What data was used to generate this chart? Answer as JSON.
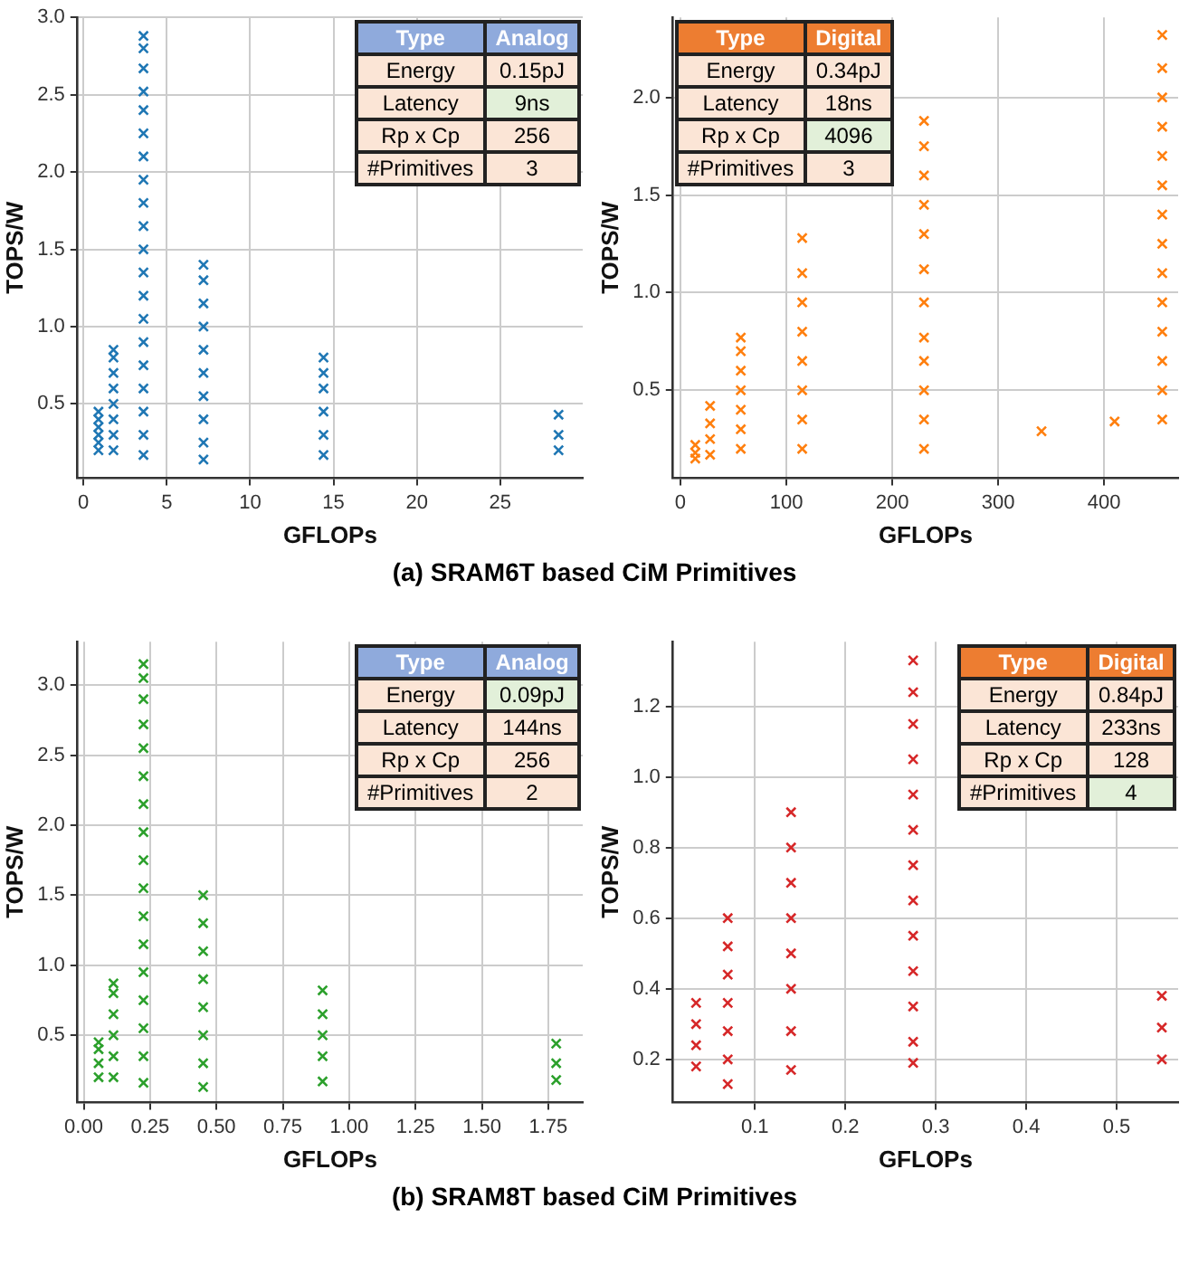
{
  "chart_data": [
    {
      "type": "scatter",
      "xlabel": "GFLOPs",
      "ylabel": "TOPS/W",
      "marker": "cross",
      "grid": true,
      "annotations": [
        "Type",
        "Analog",
        "Energy",
        "0.15pJ",
        "Latency",
        "9ns",
        "Rp x Cp",
        "256",
        "#Primitives",
        "3",
        "(a) SRAM6T based CiM Primitives"
      ],
      "xlim": [
        -0.35,
        29.95
      ],
      "ylim": [
        0.02,
        3.0
      ],
      "xticks": [
        0,
        5,
        10,
        15,
        20,
        25
      ],
      "yticks": [
        {
          "value": 0.5,
          "label": "0.5"
        },
        {
          "value": 1,
          "label": "1.0"
        },
        {
          "value": 1.5,
          "label": "1.5"
        },
        {
          "value": 2,
          "label": "2.0"
        },
        {
          "value": 2.5,
          "label": "2.5"
        },
        {
          "value": 3,
          "label": "3.0"
        }
      ],
      "series": [
        {
          "color": "#1f77b4",
          "x": [
            0.9,
            0.9,
            0.9,
            0.9,
            0.9,
            0.9,
            1.8,
            1.8,
            1.8,
            1.8,
            1.8,
            1.8,
            1.8,
            1.8,
            3.6,
            3.6,
            3.6,
            3.6,
            3.6,
            3.6,
            3.6,
            3.6,
            3.6,
            3.6,
            3.6,
            3.6,
            3.6,
            3.6,
            3.6,
            3.6,
            3.6,
            3.6,
            3.6,
            3.6,
            7.2,
            7.2,
            7.2,
            7.2,
            7.2,
            7.2,
            7.2,
            7.2,
            7.2,
            7.2,
            14.4,
            14.4,
            14.4,
            14.4,
            14.4,
            14.4,
            28.5,
            28.5,
            28.5
          ],
          "values": [
            0.2,
            0.25,
            0.3,
            0.35,
            0.4,
            0.45,
            0.2,
            0.3,
            0.4,
            0.5,
            0.6,
            0.7,
            0.8,
            0.85,
            0.17,
            0.3,
            0.45,
            0.6,
            0.75,
            0.9,
            1.05,
            1.2,
            1.35,
            1.5,
            1.65,
            1.8,
            1.95,
            2.1,
            2.25,
            2.4,
            2.52,
            2.67,
            2.8,
            2.88,
            0.14,
            0.25,
            0.4,
            0.55,
            0.7,
            0.85,
            1.0,
            1.15,
            1.3,
            1.4,
            0.17,
            0.3,
            0.45,
            0.6,
            0.7,
            0.8,
            0.2,
            0.3,
            0.43
          ]
        }
      ]
    },
    {
      "type": "scatter",
      "xlabel": "GFLOPs",
      "ylabel": "TOPS/W",
      "marker": "cross",
      "grid": true,
      "annotations": [
        "Type",
        "Digital",
        "Energy",
        "0.34pJ",
        "Latency",
        "18ns",
        "Rp x Cp",
        "4096",
        "#Primitives",
        "3"
      ],
      "xlim": [
        -7,
        470
      ],
      "ylim": [
        0.05,
        2.41
      ],
      "xticks": [
        0,
        100,
        200,
        300,
        400
      ],
      "yticks": [
        {
          "value": 0.5,
          "label": "0.5"
        },
        {
          "value": 1,
          "label": "1.0"
        },
        {
          "value": 1.5,
          "label": "1.5"
        },
        {
          "value": 2,
          "label": "2.0"
        }
      ],
      "series": [
        {
          "color": "#ff7f0e",
          "x": [
            14,
            14,
            14,
            28,
            28,
            28,
            28,
            57,
            57,
            57,
            57,
            57,
            57,
            57,
            115,
            115,
            115,
            115,
            115,
            115,
            115,
            115,
            230,
            230,
            230,
            230,
            230,
            230,
            230,
            230,
            230,
            230,
            230,
            230,
            341,
            410,
            455,
            455,
            455,
            455,
            455,
            455,
            455,
            455,
            455,
            455,
            455,
            455,
            455,
            455
          ],
          "values": [
            0.15,
            0.18,
            0.22,
            0.17,
            0.25,
            0.33,
            0.42,
            0.2,
            0.3,
            0.4,
            0.5,
            0.6,
            0.7,
            0.77,
            0.2,
            0.35,
            0.5,
            0.65,
            0.8,
            0.95,
            1.1,
            1.28,
            0.2,
            0.35,
            0.5,
            0.65,
            0.77,
            0.95,
            1.12,
            1.3,
            1.45,
            1.6,
            1.75,
            1.88,
            0.29,
            0.34,
            0.35,
            0.5,
            0.65,
            0.8,
            0.95,
            1.1,
            1.25,
            1.4,
            1.55,
            1.7,
            1.85,
            2.0,
            2.15,
            2.32
          ]
        }
      ]
    },
    {
      "type": "scatter",
      "xlabel": "GFLOPs",
      "ylabel": "TOPS/W",
      "marker": "cross",
      "grid": true,
      "annotations": [
        "Type",
        "Analog",
        "Energy",
        "0.09pJ",
        "Latency",
        "144ns",
        "Rp x Cp",
        "256",
        "#Primitives",
        "2",
        "(b) SRAM8T based CiM Primitives"
      ],
      "xlim": [
        -0.023,
        1.88
      ],
      "ylim": [
        0.02,
        3.31
      ],
      "xticks": [
        {
          "value": 0,
          "label": "0.00"
        },
        {
          "value": 0.25,
          "label": "0.25"
        },
        {
          "value": 0.5,
          "label": "0.50"
        },
        {
          "value": 0.75,
          "label": "0.75"
        },
        {
          "value": 1,
          "label": "1.00"
        },
        {
          "value": 1.25,
          "label": "1.25"
        },
        {
          "value": 1.5,
          "label": "1.50"
        },
        {
          "value": 1.75,
          "label": "1.75"
        }
      ],
      "yticks": [
        {
          "value": 0.5,
          "label": "0.5"
        },
        {
          "value": 1,
          "label": "1.0"
        },
        {
          "value": 1.5,
          "label": "1.5"
        },
        {
          "value": 2,
          "label": "2.0"
        },
        {
          "value": 2.5,
          "label": "2.5"
        },
        {
          "value": 3,
          "label": "3.0"
        }
      ],
      "series": [
        {
          "color": "#2ca02c",
          "x": [
            0.056,
            0.056,
            0.056,
            0.056,
            0.112,
            0.112,
            0.112,
            0.112,
            0.112,
            0.112,
            0.225,
            0.225,
            0.225,
            0.225,
            0.225,
            0.225,
            0.225,
            0.225,
            0.225,
            0.225,
            0.225,
            0.225,
            0.225,
            0.225,
            0.225,
            0.225,
            0.225,
            0.45,
            0.45,
            0.45,
            0.45,
            0.45,
            0.45,
            0.45,
            0.45,
            0.9,
            0.9,
            0.9,
            0.9,
            0.9,
            1.78,
            1.78,
            1.78
          ],
          "values": [
            0.2,
            0.3,
            0.4,
            0.45,
            0.2,
            0.35,
            0.5,
            0.65,
            0.8,
            0.87,
            0.16,
            0.35,
            0.55,
            0.75,
            0.95,
            1.15,
            1.35,
            1.55,
            1.75,
            1.95,
            2.15,
            2.35,
            2.55,
            2.72,
            2.9,
            3.05,
            3.15,
            0.13,
            0.3,
            0.5,
            0.7,
            0.9,
            1.1,
            1.3,
            1.5,
            0.17,
            0.35,
            0.5,
            0.65,
            0.82,
            0.18,
            0.3,
            0.44
          ]
        }
      ]
    },
    {
      "type": "scatter",
      "xlabel": "GFLOPs",
      "ylabel": "TOPS/W",
      "marker": "cross",
      "grid": true,
      "annotations": [
        "Type",
        "Digital",
        "Energy",
        "0.84pJ",
        "Latency",
        "233ns",
        "Rp x Cp",
        "128",
        "#Primitives",
        "4"
      ],
      "xlim": [
        0.0095,
        0.568
      ],
      "ylim": [
        0.078,
        1.383
      ],
      "xticks": [
        0.1,
        0.2,
        0.3,
        0.4,
        0.5
      ],
      "yticks": [
        0.2,
        0.4,
        0.6,
        0.8,
        {
          "value": 1,
          "label": "1.0"
        },
        1.2
      ],
      "series": [
        {
          "color": "#d62728",
          "x": [
            0.035,
            0.035,
            0.035,
            0.035,
            0.07,
            0.07,
            0.07,
            0.07,
            0.07,
            0.07,
            0.07,
            0.14,
            0.14,
            0.14,
            0.14,
            0.14,
            0.14,
            0.14,
            0.14,
            0.275,
            0.275,
            0.275,
            0.275,
            0.275,
            0.275,
            0.275,
            0.275,
            0.275,
            0.275,
            0.275,
            0.275,
            0.275,
            0.55,
            0.55,
            0.55
          ],
          "values": [
            0.18,
            0.24,
            0.3,
            0.36,
            0.13,
            0.2,
            0.28,
            0.36,
            0.44,
            0.52,
            0.6,
            0.17,
            0.28,
            0.4,
            0.5,
            0.6,
            0.7,
            0.8,
            0.9,
            0.19,
            0.25,
            0.35,
            0.45,
            0.55,
            0.65,
            0.75,
            0.85,
            0.95,
            1.05,
            1.15,
            1.24,
            1.33,
            0.2,
            0.29,
            0.38
          ]
        }
      ]
    }
  ]
}
